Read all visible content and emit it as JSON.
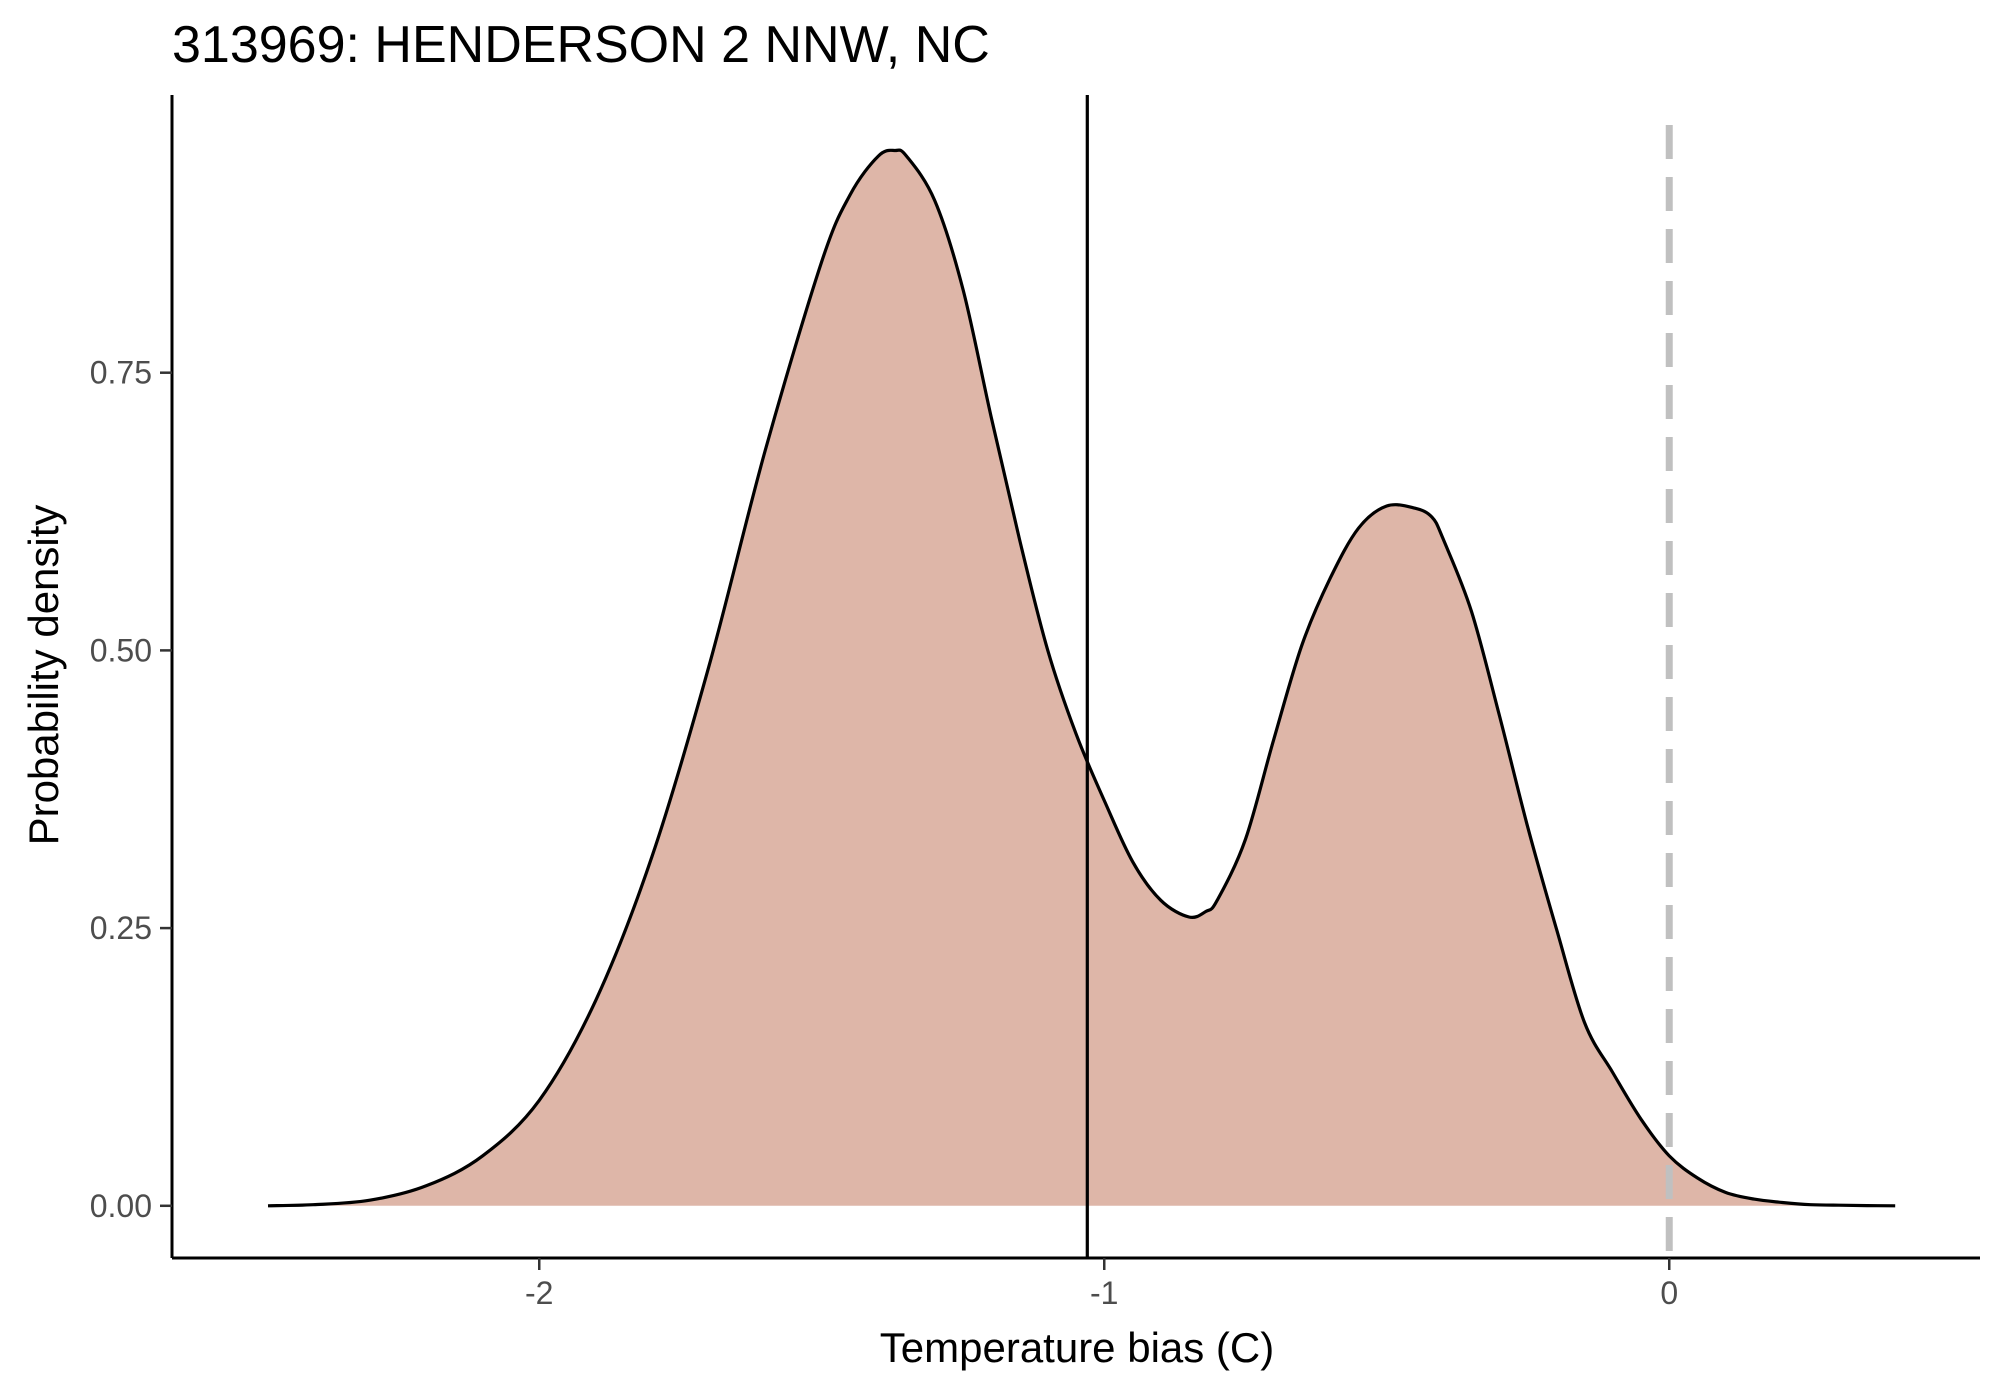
{
  "chart_data": {
    "type": "area",
    "title": "313969: HENDERSON 2 NNW, NC",
    "xlabel": "Temperature bias (C)",
    "ylabel": "Probability density",
    "xlim": [
      -2.65,
      0.55
    ],
    "ylim": [
      -0.047,
      1.0
    ],
    "x_ticks": [
      -2,
      -1,
      0
    ],
    "x_tick_labels": [
      "-2",
      "-1",
      "0"
    ],
    "y_ticks": [
      0,
      0.25,
      0.5,
      0.75
    ],
    "y_tick_labels": [
      "0.00",
      "0.25",
      "0.50",
      "0.75"
    ],
    "grid": false,
    "legend": "none",
    "colors": {
      "fill": "#DEB6A8",
      "line": "#000000",
      "reference_line": "#C0C0C0",
      "axis": "#000000"
    },
    "density_curve": {
      "x": [
        -2.48,
        -2.4,
        -2.3,
        -2.2,
        -2.1,
        -2.0,
        -1.9,
        -1.8,
        -1.7,
        -1.6,
        -1.5,
        -1.45,
        -1.4,
        -1.37,
        -1.35,
        -1.3,
        -1.25,
        -1.2,
        -1.15,
        -1.1,
        -1.05,
        -1.0,
        -0.95,
        -0.9,
        -0.85,
        -0.82,
        -0.8,
        -0.75,
        -0.7,
        -0.65,
        -0.6,
        -0.55,
        -0.5,
        -0.45,
        -0.42,
        -0.4,
        -0.35,
        -0.3,
        -0.25,
        -0.2,
        -0.15,
        -0.1,
        -0.05,
        0.0,
        0.05,
        0.1,
        0.15,
        0.2,
        0.25,
        0.3,
        0.35,
        0.4
      ],
      "y": [
        0.0,
        0.001,
        0.005,
        0.018,
        0.045,
        0.095,
        0.185,
        0.315,
        0.485,
        0.68,
        0.85,
        0.91,
        0.945,
        0.95,
        0.945,
        0.905,
        0.825,
        0.71,
        0.6,
        0.5,
        0.425,
        0.365,
        0.31,
        0.275,
        0.26,
        0.265,
        0.275,
        0.33,
        0.42,
        0.505,
        0.565,
        0.61,
        0.63,
        0.628,
        0.62,
        0.6,
        0.535,
        0.44,
        0.34,
        0.25,
        0.165,
        0.12,
        0.078,
        0.045,
        0.025,
        0.012,
        0.006,
        0.003,
        0.001,
        0.0005,
        0.0002,
        0.0
      ]
    },
    "reference_lines": [
      {
        "axis": "x",
        "value": -1.03,
        "style": "solid"
      },
      {
        "axis": "x",
        "value": 0,
        "style": "dashed"
      }
    ]
  }
}
